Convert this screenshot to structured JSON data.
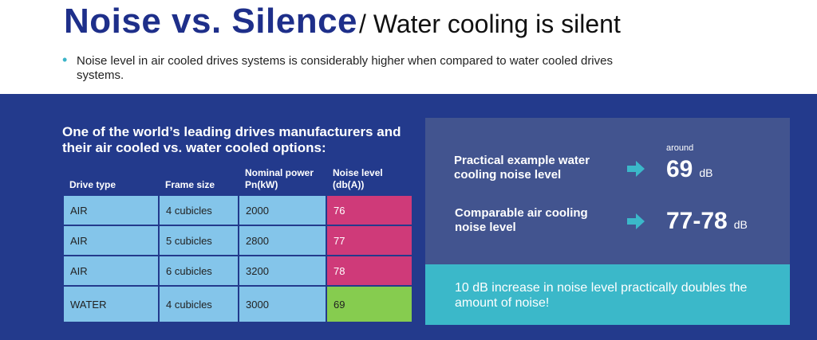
{
  "title": {
    "main": "Noise vs. Silence",
    "sub": "/ Water cooling is silent"
  },
  "bullet": "Noise level in air cooled drives systems is considerably higher when compared to water cooled drives systems.",
  "left_heading": "One of the world’s leading drives manufacturers and their air cooled vs. water cooled options:",
  "table": {
    "headers": [
      "Drive type",
      "Frame size",
      "Nominal power Pn(kW)",
      "Noise level (db(A))"
    ],
    "rows": [
      [
        "AIR",
        "4 cubicles",
        "2000",
        "76"
      ],
      [
        "AIR",
        "5 cubicles",
        "2800",
        "77"
      ],
      [
        "AIR",
        "6 cubicles",
        "3200",
        "78"
      ],
      [
        "WATER",
        "4 cubicles",
        "3000",
        "69"
      ]
    ]
  },
  "examples": {
    "water_label": "Practical example water cooling noise level",
    "around": "around",
    "water_value": "69",
    "water_unit": "dB",
    "air_label": "Comparable air cooling noise level",
    "air_value": "77-78",
    "air_unit": "dB"
  },
  "footnote": "10 dB increase in noise level practically doubles the amount of noise!",
  "colors": {
    "navy": "#233a8c",
    "cyan": "#3bb8c9",
    "pink": "#cf3a79",
    "green": "#86cc4f",
    "light_blue": "#84c5ea"
  },
  "icons": [
    "arrow-right-icon"
  ]
}
